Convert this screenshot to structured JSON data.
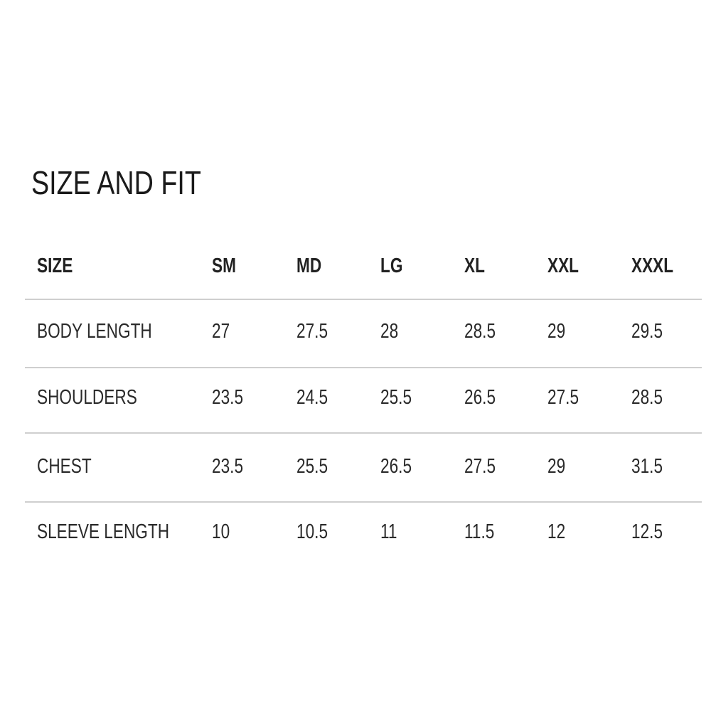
{
  "title": "SIZE AND FIT",
  "table": {
    "headers": [
      "SIZE",
      "SM",
      "MD",
      "LG",
      "XL",
      "XXL",
      "XXXL"
    ],
    "rows": [
      [
        "BODY LENGTH",
        "27",
        "27.5",
        "28",
        "28.5",
        "29",
        "29.5"
      ],
      [
        "SHOULDERS",
        "23.5",
        "24.5",
        "25.5",
        "26.5",
        "27.5",
        "28.5"
      ],
      [
        "CHEST",
        "23.5",
        "25.5",
        "26.5",
        "27.5",
        "29",
        "31.5"
      ],
      [
        "SLEEVE LENGTH",
        "10",
        "10.5",
        "11",
        "11.5",
        "12",
        "12.5"
      ]
    ]
  },
  "colors": {
    "text": "#222222",
    "divider": "#cfcfcf",
    "background": "#ffffff"
  }
}
